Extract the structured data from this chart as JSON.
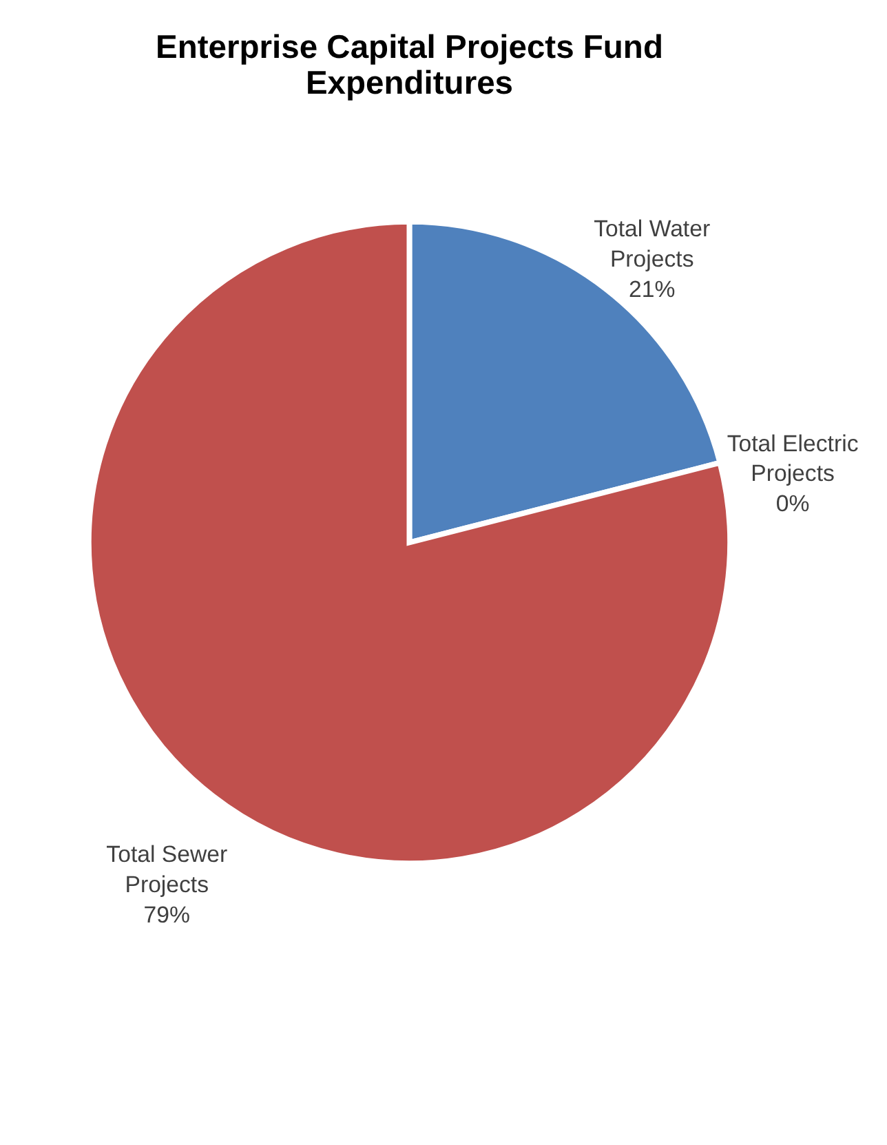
{
  "chart_data": {
    "type": "pie",
    "title": "Enterprise Capital Projects Fund Expenditures",
    "categories": [
      "Total Water Projects",
      "Total Electric Projects",
      "Total Sewer Projects"
    ],
    "values": [
      21,
      0,
      79
    ],
    "colors": [
      "#4f81bd",
      "#9bbb59",
      "#c0504d"
    ],
    "value_labels": [
      "21%",
      "0%",
      "79%"
    ],
    "legend": false
  }
}
